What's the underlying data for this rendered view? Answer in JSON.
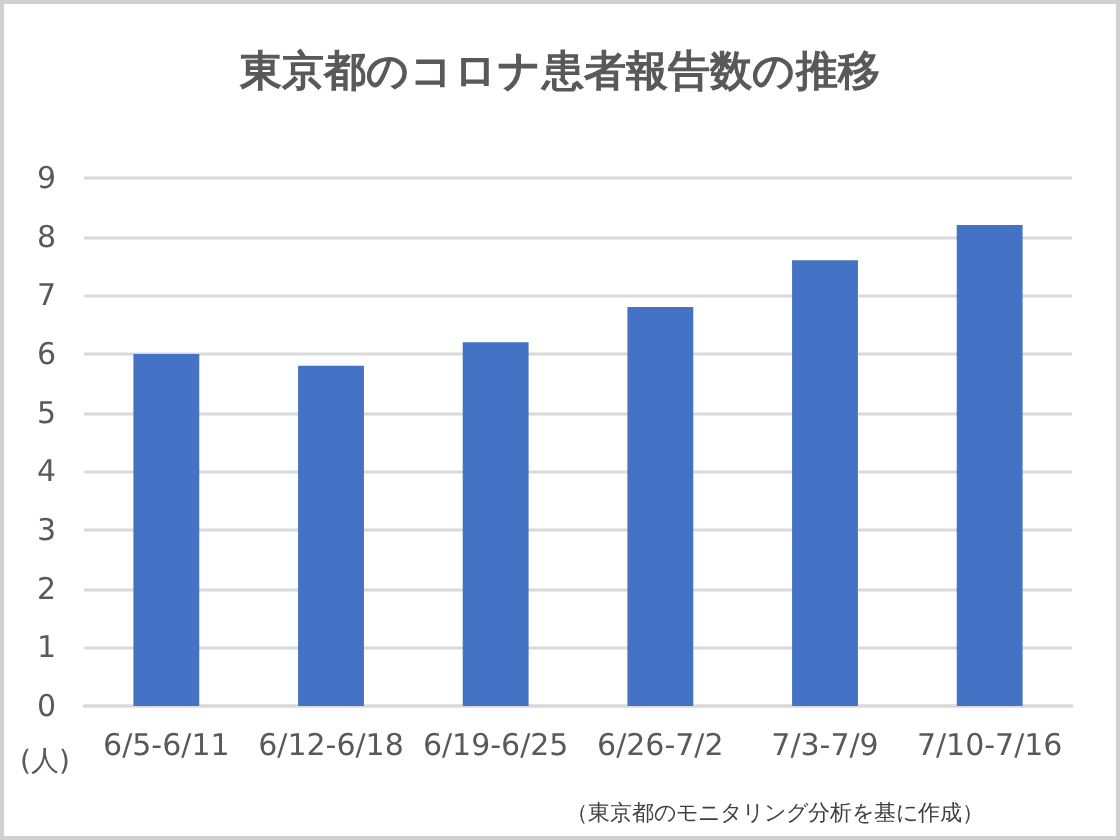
{
  "chart_data": {
    "type": "bar",
    "title": "東京都のコロナ患者報告数の推移",
    "ylabel": "(人)",
    "categories": [
      "6/5-6/11",
      "6/12-6/18",
      "6/19-6/25",
      "6/26-7/2",
      "7/3-7/9",
      "7/10-7/16"
    ],
    "values": [
      6.0,
      5.8,
      6.2,
      6.8,
      7.6,
      8.2
    ],
    "color": "#4472c4",
    "ylim": [
      0,
      9
    ],
    "yticks": [
      0,
      1,
      2,
      3,
      4,
      5,
      6,
      7,
      8,
      9
    ],
    "grid": "y",
    "annotations": [
      "（東京都のモニタリング分析を基に作成）"
    ]
  }
}
